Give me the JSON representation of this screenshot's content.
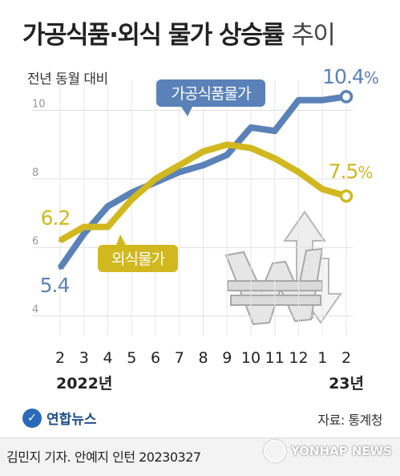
{
  "header": {
    "title": "가공식품·외식 물가 상승률",
    "title_suffix": "추이",
    "subtitle": "전년 동월 대비"
  },
  "footer": {
    "logo": "연합뉴스",
    "source": "자료: 통계청",
    "credit": "김민지 기자. 안예지 인턴  20230327",
    "watermark": "YONHAP NEWS"
  },
  "chart_data": {
    "type": "line",
    "title": "가공식품·외식 물가 상승률 추이",
    "ylabel": "전년 동월 대비",
    "categories": [
      "2",
      "3",
      "4",
      "5",
      "6",
      "7",
      "8",
      "9",
      "10",
      "11",
      "12",
      "1",
      "2"
    ],
    "year_labels": [
      "2022년",
      "23년"
    ],
    "y_ticks": [
      4,
      6,
      8,
      10
    ],
    "ylim": [
      3.5,
      11.3
    ],
    "grid": true,
    "series": [
      {
        "name": "가공식품물가",
        "color": "#5b82b8",
        "values": [
          5.4,
          6.4,
          7.2,
          7.6,
          7.9,
          8.2,
          8.4,
          8.7,
          9.5,
          9.4,
          10.3,
          10.3,
          10.4
        ],
        "start_label": "5.4",
        "end_label": "10.4",
        "end_unit": "%"
      },
      {
        "name": "외식물가",
        "color": "#d1b81f",
        "values": [
          6.2,
          6.6,
          6.6,
          7.4,
          8.0,
          8.4,
          8.8,
          9.0,
          8.9,
          8.6,
          8.2,
          7.7,
          7.5
        ],
        "start_label": "6.2",
        "end_label": "7.5",
        "end_unit": "%"
      }
    ]
  }
}
